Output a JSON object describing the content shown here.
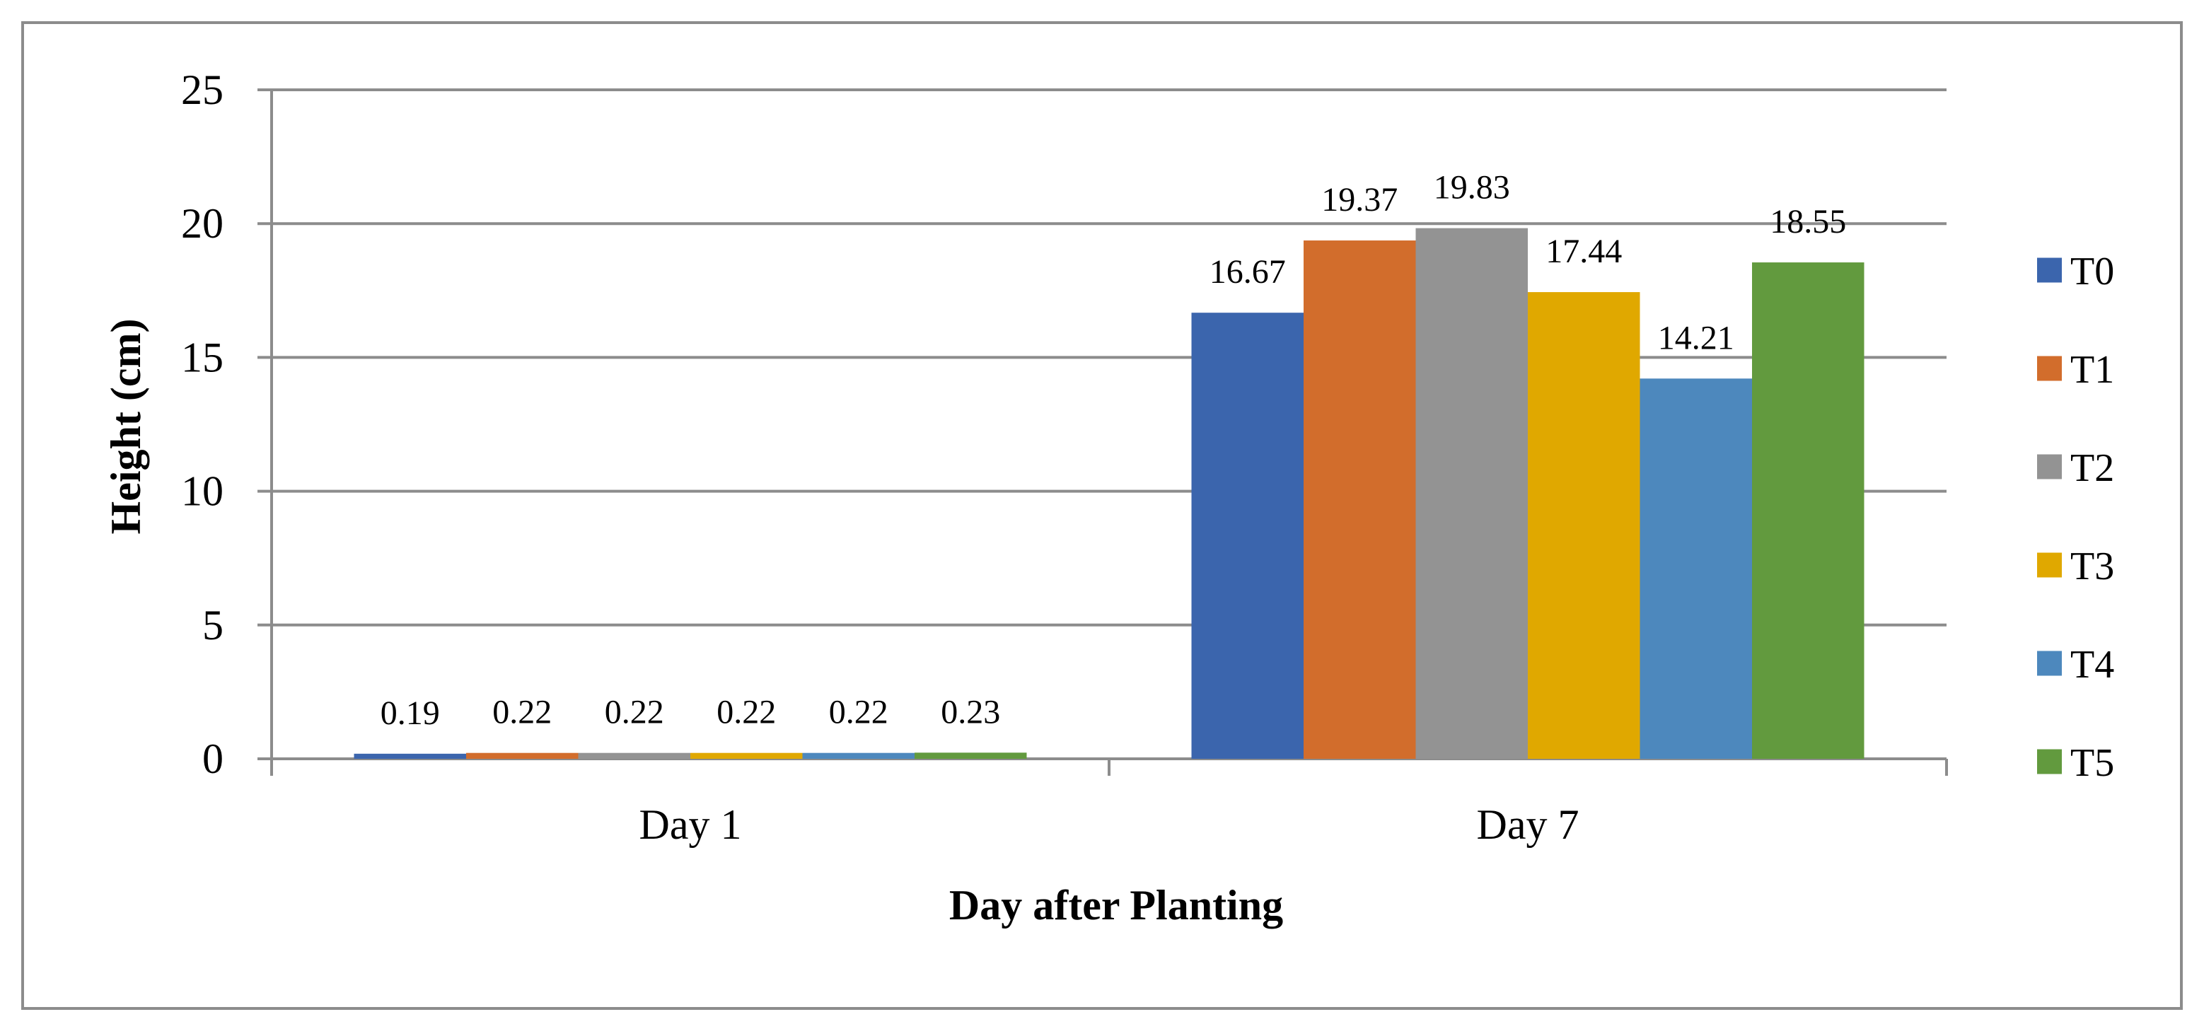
{
  "chart_data": {
    "type": "bar",
    "title": "",
    "xlabel": "Day after Planting",
    "ylabel": "Height (cm)",
    "ylim": [
      0,
      25
    ],
    "yticks": [
      0,
      5,
      10,
      15,
      20,
      25
    ],
    "grid": true,
    "legend_position": "right",
    "categories": [
      "Day 1",
      "Day 7"
    ],
    "series": [
      {
        "name": "T0",
        "color": "#3b65ad",
        "values": [
          0.19,
          16.67
        ],
        "labels": [
          "0.19",
          "16.67"
        ]
      },
      {
        "name": "T1",
        "color": "#d26d2c",
        "values": [
          0.22,
          19.37
        ],
        "labels": [
          "0.22",
          "19.37"
        ]
      },
      {
        "name": "T2",
        "color": "#939393",
        "values": [
          0.22,
          19.83
        ],
        "labels": [
          "0.22",
          "19.83"
        ]
      },
      {
        "name": "T3",
        "color": "#e0a800",
        "values": [
          0.22,
          17.44
        ],
        "labels": [
          "0.22",
          "17.44"
        ]
      },
      {
        "name": "T4",
        "color": "#4d88bd",
        "values": [
          0.22,
          14.21
        ],
        "labels": [
          "0.22",
          "14.21"
        ]
      },
      {
        "name": "T5",
        "color": "#629a3e",
        "values": [
          0.23,
          18.55
        ],
        "labels": [
          "0.23",
          "18.55"
        ]
      }
    ]
  }
}
